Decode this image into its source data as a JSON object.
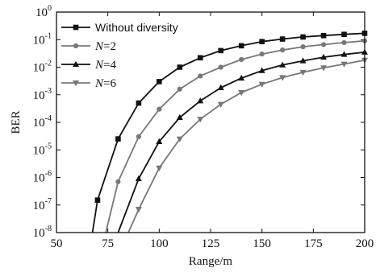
{
  "chart_data": {
    "type": "line",
    "xlabel": "Range/m",
    "ylabel": "BER",
    "xlim": [
      50,
      200
    ],
    "ylim": [
      1e-08,
      1
    ],
    "yscale": "log",
    "xticks": [
      "50",
      "75",
      "100",
      "125",
      "150",
      "175",
      "200"
    ],
    "yticks": [
      {
        "base": "10",
        "exp": "0"
      },
      {
        "base": "10",
        "exp": "-1"
      },
      {
        "base": "10",
        "exp": "-2"
      },
      {
        "base": "10",
        "exp": "-3"
      },
      {
        "base": "10",
        "exp": "-4"
      },
      {
        "base": "10",
        "exp": "-5"
      },
      {
        "base": "10",
        "exp": "-6"
      },
      {
        "base": "10",
        "exp": "-7"
      },
      {
        "base": "10",
        "exp": "-8"
      }
    ],
    "legend_position": "top-left",
    "series": [
      {
        "label_main": "Without diversity",
        "label_italic": "",
        "marker": "square",
        "color": "#111111",
        "x": [
          67.5,
          70,
          80,
          90,
          100,
          110,
          120,
          130,
          140,
          150,
          160,
          170,
          180,
          190,
          200
        ],
        "y": [
          1e-08,
          1.5e-07,
          2.5e-05,
          0.0005,
          0.003,
          0.01,
          0.022,
          0.04,
          0.06,
          0.085,
          0.105,
          0.125,
          0.14,
          0.155,
          0.17
        ]
      },
      {
        "label_main": "=2",
        "label_italic": "N",
        "marker": "circle",
        "color": "#777777",
        "x": [
          74,
          80,
          90,
          100,
          110,
          120,
          130,
          140,
          150,
          160,
          170,
          180,
          190,
          200
        ],
        "y": [
          1e-08,
          7e-07,
          3e-05,
          0.0003,
          0.0016,
          0.0048,
          0.01,
          0.019,
          0.03,
          0.042,
          0.055,
          0.066,
          0.078,
          0.09
        ]
      },
      {
        "label_main": "=4",
        "label_italic": "N",
        "marker": "triangle-up",
        "color": "#111111",
        "x": [
          80,
          90,
          100,
          110,
          120,
          130,
          140,
          150,
          160,
          170,
          180,
          190,
          200
        ],
        "y": [
          1e-08,
          9e-07,
          2e-05,
          0.00015,
          0.0006,
          0.0018,
          0.004,
          0.0075,
          0.012,
          0.017,
          0.023,
          0.029,
          0.035
        ]
      },
      {
        "label_main": "=6",
        "label_italic": "N",
        "marker": "triangle-down",
        "color": "#777777",
        "x": [
          85,
          90,
          100,
          110,
          120,
          130,
          140,
          150,
          160,
          170,
          180,
          190,
          200
        ],
        "y": [
          1e-08,
          7e-08,
          2.2e-06,
          2.5e-05,
          0.00013,
          0.00045,
          0.0012,
          0.0024,
          0.0042,
          0.0065,
          0.0095,
          0.013,
          0.018
        ]
      }
    ]
  }
}
